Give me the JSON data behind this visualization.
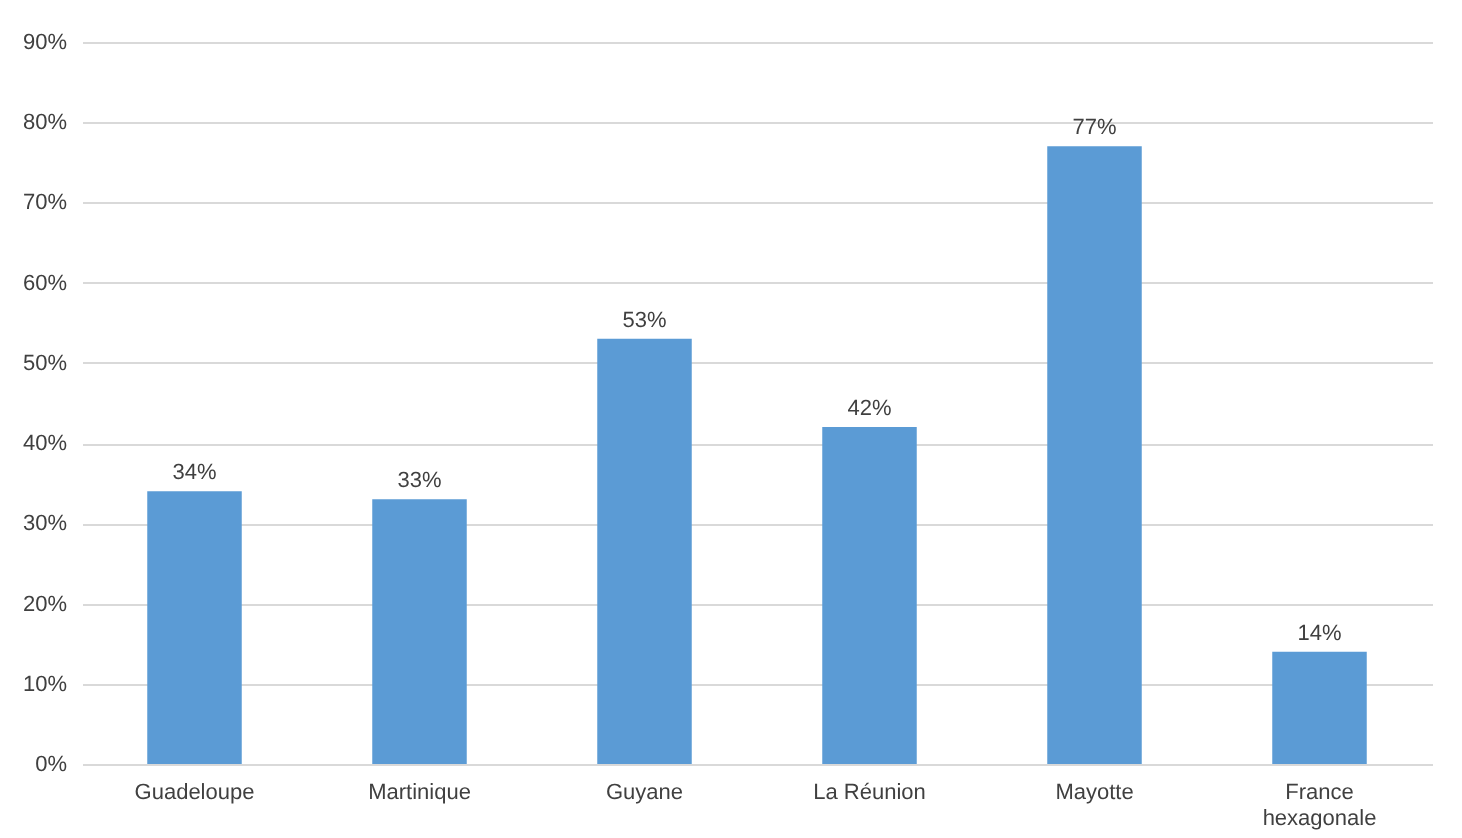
{
  "chart_data": {
    "type": "bar",
    "categories": [
      "Guadeloupe",
      "Martinique",
      "Guyane",
      "La Réunion",
      "Mayotte",
      "France hexagonale"
    ],
    "values": [
      34,
      33,
      53,
      42,
      77,
      14
    ],
    "value_labels": [
      "34%",
      "33%",
      "53%",
      "42%",
      "77%",
      "14%"
    ],
    "color": "#5b9bd5",
    "ylim": [
      0,
      90
    ],
    "yticks": [
      {
        "value": 0,
        "label": "0%"
      },
      {
        "value": 10,
        "label": "10%"
      },
      {
        "value": 20,
        "label": "20%"
      },
      {
        "value": 30,
        "label": "30%"
      },
      {
        "value": 40,
        "label": "40%"
      },
      {
        "value": 50,
        "label": "50%"
      },
      {
        "value": 60,
        "label": "60%"
      },
      {
        "value": 70,
        "label": "70%"
      },
      {
        "value": 80,
        "label": "80%"
      },
      {
        "value": 90,
        "label": "90%"
      }
    ],
    "grid": "y"
  }
}
